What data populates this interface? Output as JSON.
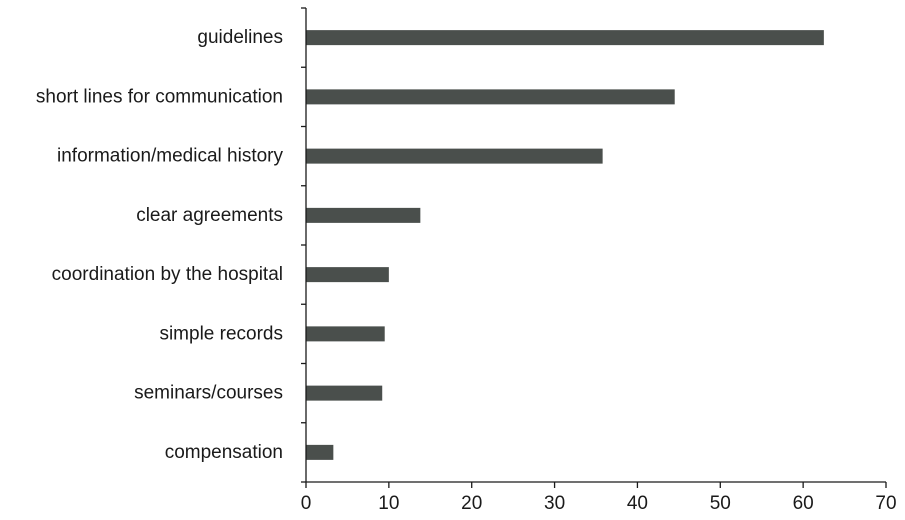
{
  "chart_data": {
    "type": "bar",
    "orientation": "horizontal",
    "title": "",
    "xlabel": "",
    "ylabel": "",
    "categories": [
      "guidelines",
      "short lines for communication",
      "information/medical history",
      "clear agreements",
      "coordination by the hospital",
      "simple records",
      "seminars/courses",
      "compensation"
    ],
    "values": [
      62.5,
      44.5,
      35.8,
      13.8,
      10.0,
      9.5,
      9.2,
      3.3
    ],
    "xlim": [
      0,
      70
    ],
    "xticks": [
      0,
      10,
      20,
      30,
      40,
      50,
      60,
      70
    ],
    "grid": false,
    "legend": "none",
    "bar_color": "#4a4f4c"
  }
}
